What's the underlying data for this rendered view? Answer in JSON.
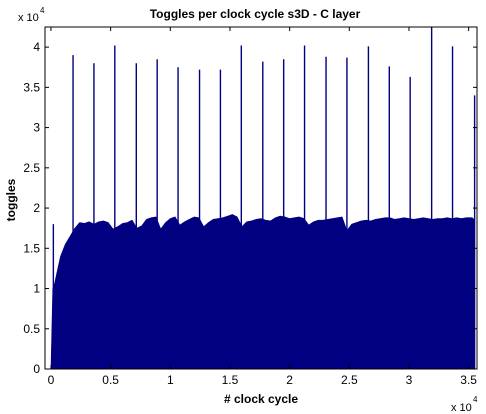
{
  "chart_data": {
    "type": "area",
    "title": "Toggles per clock cycle s3D - C layer",
    "xlabel": "# clock cycle",
    "ylabel": "toggles",
    "xlim": [
      -500,
      35700
    ],
    "ylim": [
      0,
      42500
    ],
    "x_ticks": [
      0,
      5000,
      10000,
      15000,
      20000,
      25000,
      30000,
      35000
    ],
    "x_tick_labels": [
      "0",
      "0.5",
      "1",
      "1.5",
      "2",
      "2.5",
      "3",
      "3.5"
    ],
    "y_ticks": [
      0,
      5000,
      10000,
      15000,
      20000,
      25000,
      30000,
      35000,
      40000
    ],
    "y_tick_labels": [
      "0",
      "0.5",
      "1",
      "1.5",
      "2",
      "2.5",
      "3",
      "3.5",
      "4"
    ],
    "x_exponent": {
      "base": "x 10",
      "power": "4"
    },
    "y_exponent": {
      "base": "x 10",
      "power": "4"
    },
    "grid": false,
    "fill_color": "#000080",
    "series": [
      {
        "baseline": {
          "x": [
            0,
            150,
            300,
            500,
            800,
            1200,
            1600,
            2000,
            2400,
            2800,
            3200,
            3600,
            4000,
            4400,
            4800,
            5200,
            5600,
            6000,
            6400,
            6800,
            7200,
            7600,
            8000,
            8400,
            8800,
            9200,
            9600,
            10000,
            10400,
            10800,
            11200,
            11600,
            12000,
            12400,
            12800,
            13200,
            13600,
            14000,
            14400,
            14800,
            15200,
            15600,
            16000,
            16400,
            16800,
            17200,
            17600,
            18000,
            18400,
            18800,
            19200,
            19600,
            20000,
            20400,
            20800,
            21200,
            21600,
            22000,
            22400,
            22800,
            23200,
            23600,
            24000,
            24400,
            24800,
            25200,
            25600,
            26000,
            26400,
            26800,
            27200,
            27600,
            28000,
            28400,
            28800,
            29200,
            29600,
            30000,
            30400,
            30800,
            31200,
            31600,
            32000,
            32400,
            32800,
            33200,
            33600,
            34000,
            34400,
            34800,
            35100,
            35300,
            35500
          ],
          "y": [
            0,
            10000,
            10600,
            12000,
            14000,
            15500,
            16500,
            17500,
            18200,
            18100,
            18300,
            18000,
            18300,
            18400,
            18200,
            17400,
            17700,
            18100,
            18200,
            18500,
            17500,
            17800,
            18600,
            18800,
            18900,
            17400,
            18200,
            18700,
            18900,
            17900,
            18300,
            18600,
            18900,
            18800,
            17700,
            18200,
            18600,
            18700,
            18800,
            19000,
            19200,
            18900,
            17700,
            18300,
            18400,
            18600,
            18700,
            18500,
            18400,
            18800,
            19000,
            18900,
            18700,
            18800,
            18900,
            18700,
            17900,
            18300,
            18500,
            18500,
            18600,
            18700,
            18800,
            18900,
            17200,
            18000,
            18200,
            18400,
            18500,
            18400,
            18600,
            18700,
            18800,
            18800,
            18600,
            18700,
            18800,
            18700,
            18600,
            18700,
            18800,
            18700,
            18600,
            18700,
            18700,
            18800,
            18700,
            18800,
            18700,
            18800,
            18800,
            18800,
            18500
          ]
        },
        "spikes": {
          "x": [
            200,
            1850,
            3600,
            5350,
            7150,
            8900,
            10650,
            12450,
            14200,
            15950,
            17750,
            19500,
            21250,
            23050,
            24800,
            26600,
            28350,
            30100,
            31900,
            33650,
            35500
          ],
          "y": [
            18000,
            39000,
            38000,
            40200,
            38000,
            38500,
            37500,
            37200,
            37200,
            40200,
            38200,
            38500,
            40200,
            38800,
            38700,
            40100,
            37600,
            36300,
            42500,
            40100,
            34000
          ]
        }
      }
    ]
  }
}
